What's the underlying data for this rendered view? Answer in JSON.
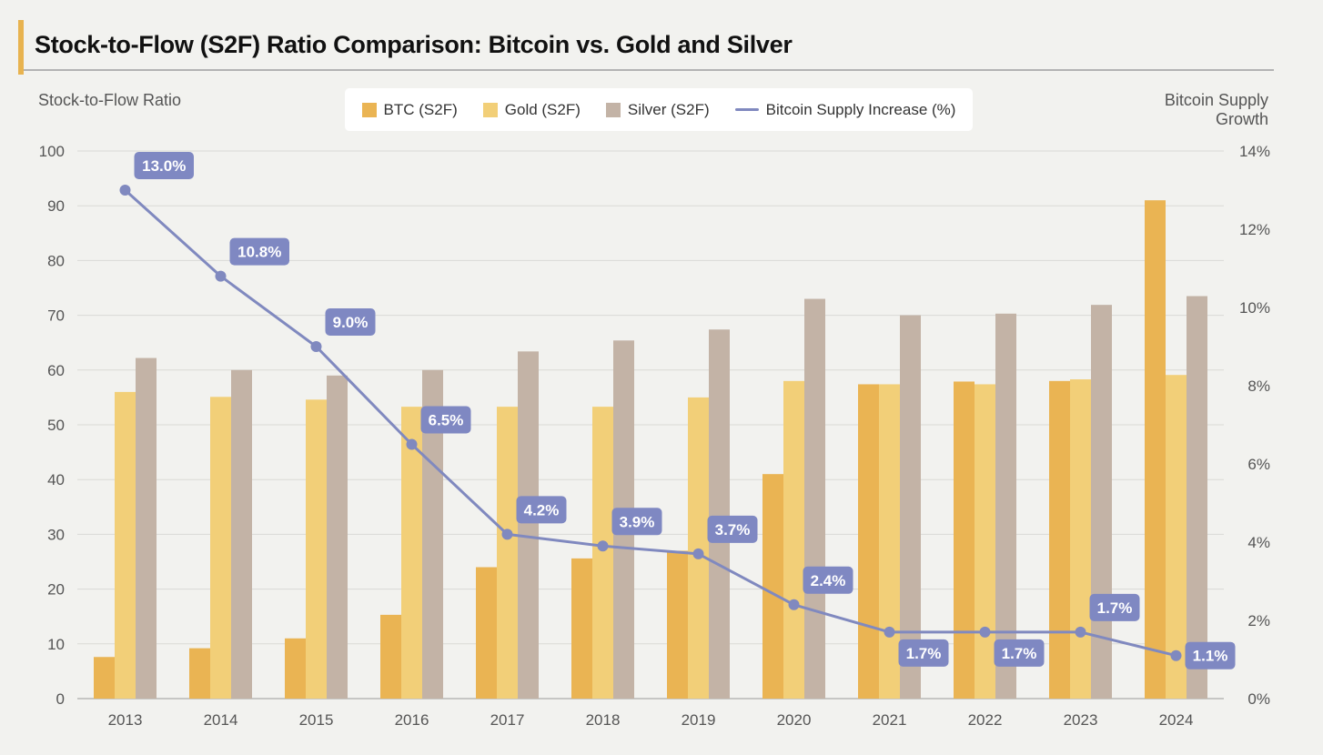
{
  "title": "Stock-to-Flow (S2F) Ratio Comparison: Bitcoin vs. Gold and Silver",
  "colors": {
    "accent": "#e8b34f",
    "btc": "#eab453",
    "gold": "#f2cf78",
    "silver": "#c3b3a6",
    "line": "#8089bf",
    "label_bg": "#7f88c2"
  },
  "chart_data": {
    "type": "bar",
    "categories": [
      "2013",
      "2014",
      "2015",
      "2016",
      "2017",
      "2018",
      "2019",
      "2020",
      "2021",
      "2022",
      "2023",
      "2024"
    ],
    "series": [
      {
        "name": "BTC (S2F)",
        "axis": "left",
        "values": [
          7.6,
          9.2,
          11.0,
          15.3,
          24.0,
          25.6,
          27.0,
          41.0,
          57.4,
          57.9,
          58.0,
          91.0
        ]
      },
      {
        "name": "Gold (S2F)",
        "axis": "left",
        "values": [
          56.0,
          55.1,
          54.6,
          53.3,
          53.3,
          53.3,
          55.0,
          58.0,
          57.4,
          57.4,
          58.3,
          59.1
        ]
      },
      {
        "name": "Silver (S2F)",
        "axis": "left",
        "values": [
          62.2,
          60.0,
          59.0,
          60.0,
          63.4,
          65.4,
          67.4,
          73.0,
          70.0,
          70.3,
          71.9,
          73.5
        ]
      }
    ],
    "line_series": {
      "name": "Bitcoin Supply Increase (%)",
      "axis": "right",
      "type": "line",
      "values": [
        13.0,
        10.8,
        9.0,
        6.5,
        4.2,
        3.9,
        3.7,
        2.4,
        1.7,
        1.7,
        1.7,
        1.1
      ],
      "labels": [
        "13.0%",
        "10.8%",
        "9.0%",
        "6.5%",
        "4.2%",
        "3.9%",
        "3.7%",
        "2.4%",
        "1.7%",
        "1.7%",
        "1.7%",
        "1.1%"
      ]
    },
    "ylabel": "Stock-to-Flow Ratio",
    "ylabel_right": "Bitcoin Supply Growth",
    "ylim": [
      0,
      100
    ],
    "ylim_right": [
      0,
      14
    ],
    "yticks": [
      "0",
      "10",
      "20",
      "30",
      "40",
      "50",
      "60",
      "70",
      "80",
      "90",
      "100"
    ],
    "yticks_right": [
      "0%",
      "2%",
      "4%",
      "6%",
      "8%",
      "10%",
      "12%",
      "14%"
    ],
    "grid": true,
    "legend_position": "top-center"
  }
}
